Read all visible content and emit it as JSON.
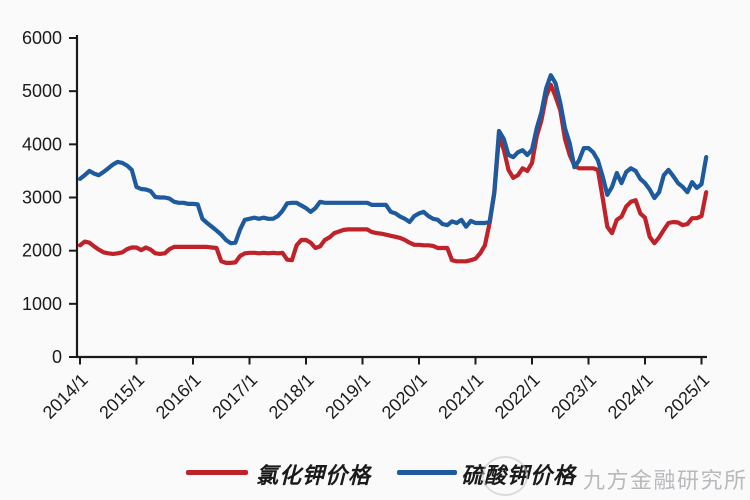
{
  "chart_data": {
    "type": "line",
    "title": "",
    "xlabel": "",
    "ylabel": "",
    "x_unit": "month",
    "x_start_label": "2014/1",
    "x_tick_labels": [
      "2014/1",
      "2015/1",
      "2016/1",
      "2017/1",
      "2018/1",
      "2019/1",
      "2020/1",
      "2021/1",
      "2022/1",
      "2023/1",
      "2024/1",
      "2025/1"
    ],
    "y_tick_labels": [
      "0",
      "1000",
      "2000",
      "3000",
      "4000",
      "5000",
      "6000"
    ],
    "y_ticks": [
      0,
      1000,
      2000,
      3000,
      4000,
      5000,
      6000
    ],
    "ylim": [
      0,
      6000
    ],
    "grid": false,
    "legend_position": "bottom",
    "series": [
      {
        "name": "氯化钾价格",
        "color": "#bf2229",
        "values": [
          2100,
          2170,
          2150,
          2080,
          2020,
          1970,
          1950,
          1940,
          1950,
          1970,
          2030,
          2060,
          2060,
          2010,
          2060,
          2020,
          1950,
          1940,
          1950,
          2030,
          2070,
          2070,
          2070,
          2070,
          2070,
          2070,
          2070,
          2070,
          2060,
          2050,
          1800,
          1770,
          1770,
          1780,
          1900,
          1950,
          1960,
          1960,
          1950,
          1960,
          1950,
          1960,
          1950,
          1960,
          1830,
          1820,
          2100,
          2200,
          2200,
          2150,
          2050,
          2080,
          2200,
          2250,
          2330,
          2360,
          2390,
          2400,
          2400,
          2400,
          2400,
          2400,
          2350,
          2330,
          2320,
          2300,
          2280,
          2260,
          2240,
          2200,
          2150,
          2110,
          2110,
          2100,
          2100,
          2090,
          2050,
          2050,
          2050,
          1820,
          1800,
          1800,
          1800,
          1820,
          1850,
          1950,
          2100,
          2520,
          3080,
          4150,
          3900,
          3520,
          3370,
          3420,
          3550,
          3500,
          3650,
          4150,
          4450,
          4900,
          5120,
          4900,
          4640,
          4100,
          3800,
          3600,
          3550,
          3550,
          3550,
          3550,
          3520,
          3000,
          2450,
          2330,
          2580,
          2640,
          2830,
          2920,
          2950,
          2700,
          2620,
          2260,
          2140,
          2250,
          2390,
          2520,
          2540,
          2530,
          2480,
          2500,
          2610,
          2610,
          2650,
          3100
        ]
      },
      {
        "name": "硫酸钾价格",
        "color": "#1e5a9e",
        "values": [
          3350,
          3420,
          3500,
          3450,
          3420,
          3480,
          3550,
          3620,
          3670,
          3650,
          3600,
          3520,
          3200,
          3160,
          3150,
          3120,
          3010,
          3000,
          3000,
          2980,
          2920,
          2900,
          2900,
          2880,
          2880,
          2870,
          2600,
          2520,
          2450,
          2380,
          2300,
          2200,
          2140,
          2150,
          2400,
          2580,
          2600,
          2620,
          2600,
          2620,
          2600,
          2600,
          2650,
          2750,
          2890,
          2900,
          2900,
          2850,
          2800,
          2730,
          2800,
          2920,
          2900,
          2900,
          2900,
          2900,
          2900,
          2900,
          2900,
          2900,
          2900,
          2900,
          2860,
          2860,
          2860,
          2860,
          2730,
          2700,
          2640,
          2600,
          2540,
          2650,
          2700,
          2730,
          2650,
          2600,
          2580,
          2500,
          2480,
          2550,
          2520,
          2580,
          2450,
          2560,
          2520,
          2520,
          2520,
          2540,
          3100,
          4250,
          4100,
          3800,
          3760,
          3850,
          3890,
          3800,
          3900,
          4300,
          4600,
          5050,
          5300,
          5150,
          4780,
          4300,
          4020,
          3570,
          3700,
          3930,
          3930,
          3850,
          3700,
          3400,
          3050,
          3200,
          3460,
          3270,
          3480,
          3550,
          3500,
          3350,
          3270,
          3150,
          2990,
          3100,
          3420,
          3520,
          3400,
          3270,
          3200,
          3100,
          3290,
          3180,
          3250,
          3760
        ]
      }
    ]
  },
  "legend": {
    "items": [
      {
        "label": "氯化钾价格",
        "color": "#bf2229"
      },
      {
        "label": "硫酸钾价格",
        "color": "#1e5a9e"
      }
    ]
  },
  "watermark": {
    "text": "九方金融研究所",
    "color": "#b3b3b7"
  },
  "axis": {
    "color": "#1a1a1a",
    "tick_color": "#1a1a1a",
    "label_color": "#1c1c1c"
  }
}
